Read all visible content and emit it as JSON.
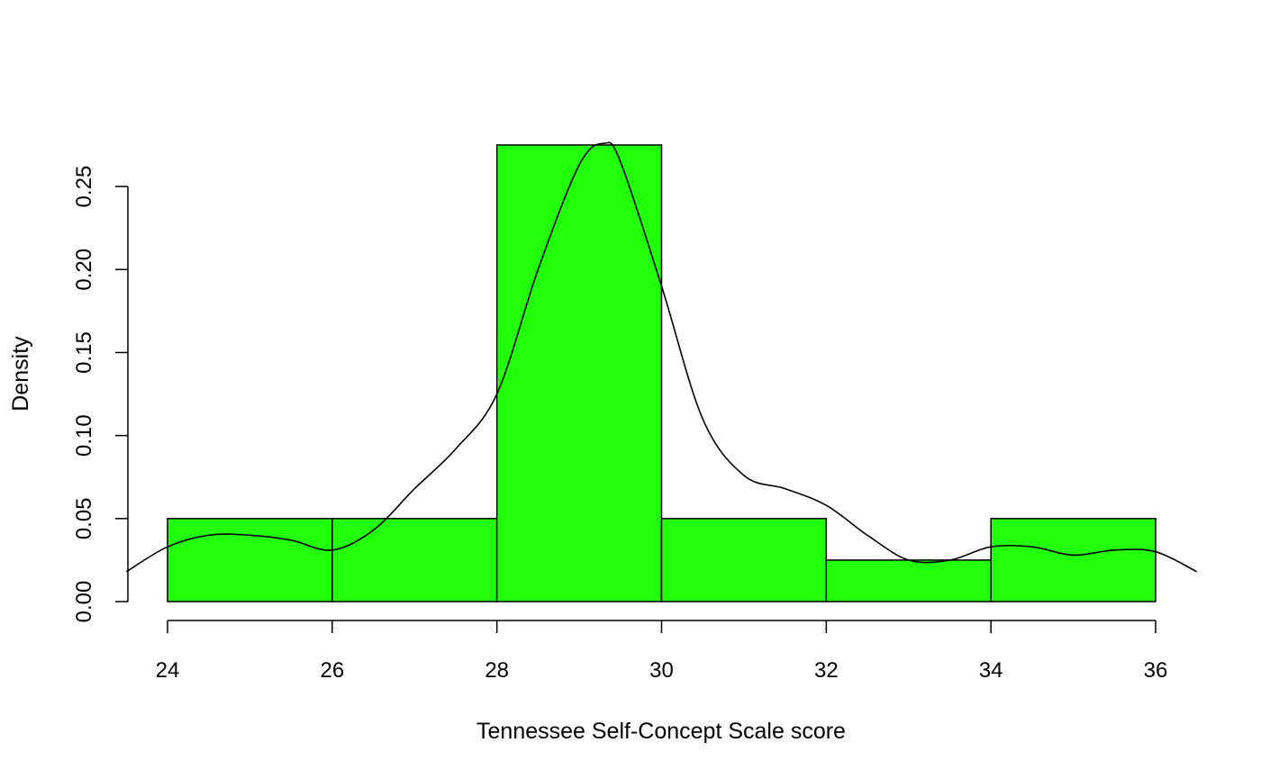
{
  "chart_data": {
    "type": "bar",
    "title": "",
    "xlabel": "Tennessee Self-Concept Scale score",
    "ylabel": "Density",
    "xlim": [
      23.5,
      36.5
    ],
    "ylim": [
      0,
      0.275
    ],
    "bins": [
      {
        "start": 24,
        "end": 26,
        "density": 0.05
      },
      {
        "start": 26,
        "end": 28,
        "density": 0.05
      },
      {
        "start": 28,
        "end": 30,
        "density": 0.275
      },
      {
        "start": 30,
        "end": 32,
        "density": 0.05
      },
      {
        "start": 32,
        "end": 34,
        "density": 0.025
      },
      {
        "start": 34,
        "end": 36,
        "density": 0.05
      }
    ],
    "x_ticks": [
      "24",
      "26",
      "28",
      "30",
      "32",
      "34",
      "36"
    ],
    "y_ticks": [
      "0.00",
      "0.05",
      "0.10",
      "0.15",
      "0.20",
      "0.25"
    ],
    "density_curve": {
      "name": "kernel density",
      "x": [
        23.5,
        24.0,
        24.5,
        25.0,
        25.5,
        26.0,
        26.5,
        27.0,
        27.5,
        28.0,
        28.5,
        29.0,
        29.3,
        29.5,
        30.0,
        30.5,
        31.0,
        31.5,
        32.0,
        32.5,
        33.0,
        33.5,
        34.0,
        34.5,
        35.0,
        35.5,
        36.0,
        36.5
      ],
      "y": [
        0.018,
        0.033,
        0.04,
        0.04,
        0.037,
        0.031,
        0.043,
        0.068,
        0.092,
        0.125,
        0.2,
        0.263,
        0.276,
        0.265,
        0.19,
        0.11,
        0.076,
        0.068,
        0.058,
        0.04,
        0.025,
        0.025,
        0.033,
        0.033,
        0.028,
        0.031,
        0.03,
        0.018
      ]
    },
    "colors": {
      "bar_fill": "#22ff0a",
      "bar_stroke": "#000000",
      "curve": "#000000"
    }
  }
}
